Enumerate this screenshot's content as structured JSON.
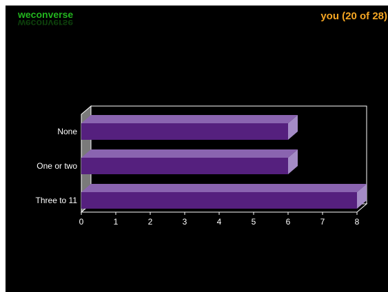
{
  "brand": {
    "name": "weconverse",
    "color": "#22b51e"
  },
  "counter": {
    "text": "you (20 of 28)",
    "color": "#f5a623"
  },
  "chart_data": {
    "type": "bar",
    "orientation": "horizontal",
    "style": "3d",
    "categories": [
      "None",
      "One or two",
      "Three to 11"
    ],
    "values": [
      6,
      6,
      8
    ],
    "xlim": [
      0,
      8
    ],
    "x_ticks": [
      "0",
      "1",
      "2",
      "3",
      "4",
      "5",
      "6",
      "7",
      "8"
    ],
    "grid": false,
    "legend": "none",
    "colors": {
      "bar_front": "#55207e",
      "bar_top": "#8a64b0",
      "bar_side": "#a48bc6",
      "axis": "#ffffff",
      "wall": "#7a7a7a",
      "label": "#ffffff"
    }
  }
}
